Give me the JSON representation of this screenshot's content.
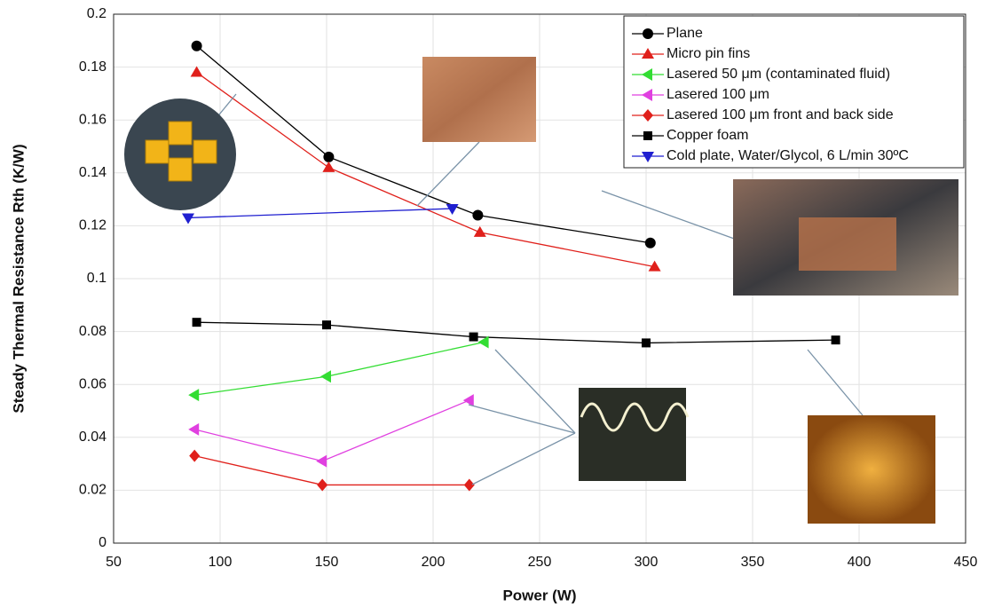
{
  "chart_data": {
    "type": "line",
    "xlabel": "Power (W)",
    "ylabel": "Steady Thermal Resistance  Rth  (K/W)",
    "xlim": [
      50,
      450
    ],
    "xticks": [
      50,
      100,
      150,
      200,
      250,
      300,
      350,
      400,
      450
    ],
    "ylim": [
      0,
      0.2
    ],
    "yticks": [
      0,
      0.02,
      0.04,
      0.06,
      0.08,
      0.1,
      0.12,
      0.14,
      0.16,
      0.18,
      0.2
    ],
    "grid": true,
    "legend": "upper right",
    "series": [
      {
        "name": "Plane",
        "color": "#000000",
        "marker": "circle",
        "x": [
          89,
          151,
          221,
          302
        ],
        "values": [
          0.188,
          0.146,
          0.124,
          0.1135
        ]
      },
      {
        "name": "Micro pin fins",
        "color": "#e0201b",
        "marker": "triangle-up",
        "x": [
          89,
          151,
          222,
          304
        ],
        "values": [
          0.178,
          0.142,
          0.1175,
          0.1045
        ]
      },
      {
        "name": "Lasered 50 μm (contaminated fluid)",
        "color": "#33dd33",
        "marker": "triangle-left",
        "x": [
          88,
          150,
          224
        ],
        "values": [
          0.056,
          0.063,
          0.076
        ]
      },
      {
        "name": "Lasered 100 μm",
        "color": "#e040e0",
        "marker": "triangle-left",
        "x": [
          88,
          148,
          217
        ],
        "values": [
          0.043,
          0.031,
          0.054
        ]
      },
      {
        "name": "Lasered 100 μm front and back side",
        "color": "#e0201b",
        "marker": "diamond",
        "x": [
          88,
          148,
          217
        ],
        "values": [
          0.033,
          0.022,
          0.022
        ]
      },
      {
        "name": "Copper foam",
        "color": "#000000",
        "marker": "square",
        "x": [
          89,
          150,
          219,
          300,
          389
        ],
        "values": [
          0.0835,
          0.0825,
          0.078,
          0.0757,
          0.0768
        ]
      },
      {
        "name": "Cold plate, Water/Glycol, 6 L/min 30ºC",
        "color": "#1f1fd0",
        "marker": "triangle-down",
        "x": [
          85,
          209
        ],
        "values": [
          0.123,
          0.1265
        ]
      }
    ]
  }
}
